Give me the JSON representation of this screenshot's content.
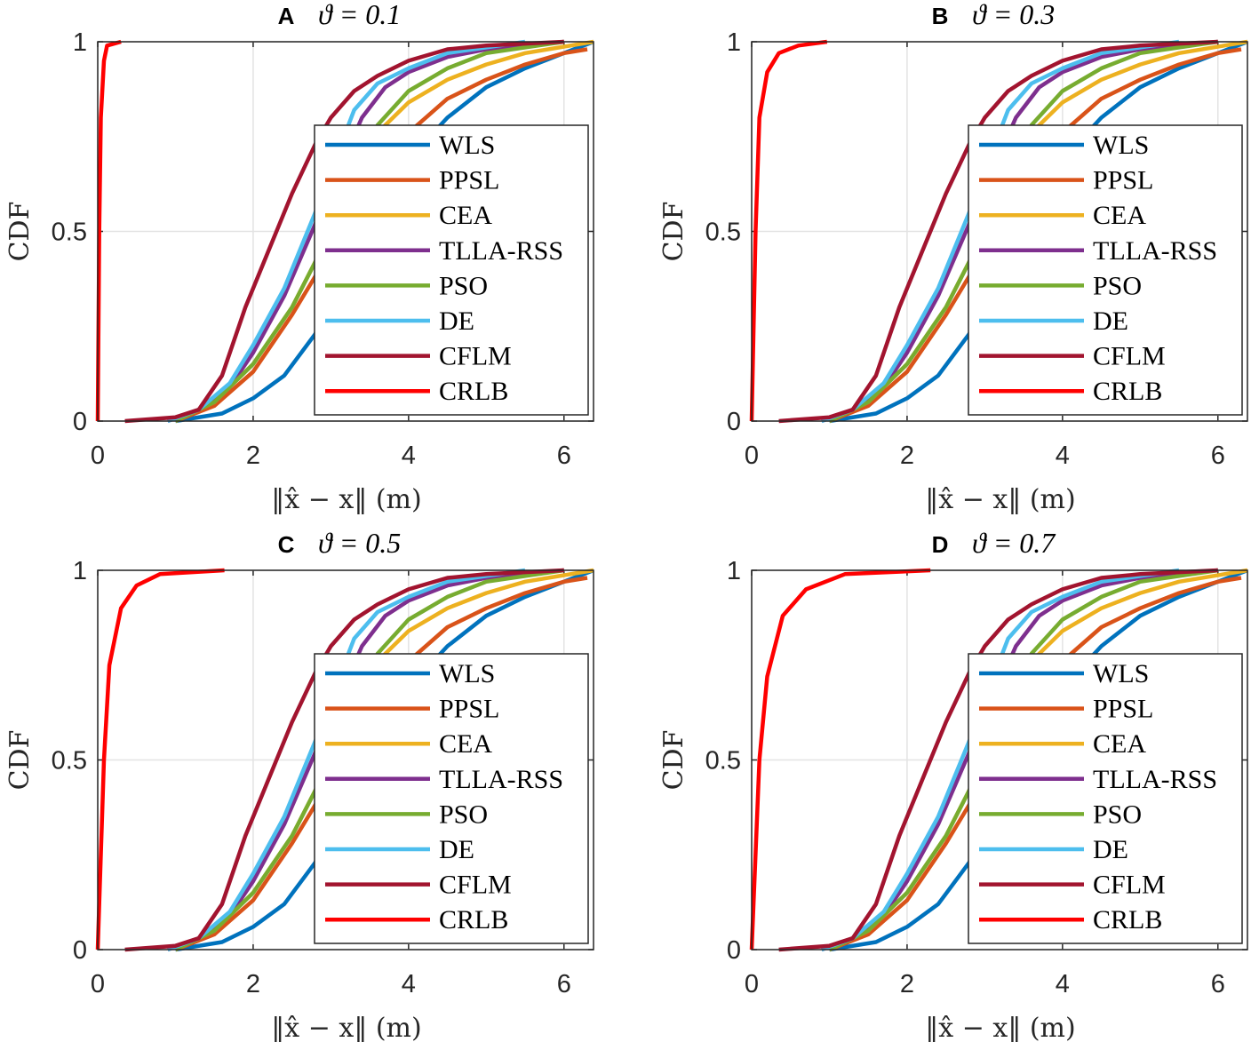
{
  "chart_data": {
    "type": "line",
    "xlabel": "‖x̂ − x‖ (m)",
    "ylabel": "CDF",
    "xlim": [
      0,
      6.38
    ],
    "ylim": [
      0,
      1
    ],
    "xticks": [
      "0",
      "2",
      "4",
      "6"
    ],
    "yticks": [
      "0",
      "0.5",
      "1"
    ],
    "grid": true,
    "legend_position": "lower-right",
    "common_series": [
      {
        "name": "WLS",
        "color": "#0072BD",
        "points": [
          [
            1.0,
            0
          ],
          [
            1.6,
            0.02
          ],
          [
            2.0,
            0.06
          ],
          [
            2.4,
            0.12
          ],
          [
            2.8,
            0.23
          ],
          [
            3.2,
            0.42
          ],
          [
            3.6,
            0.6
          ],
          [
            4.0,
            0.69
          ],
          [
            4.5,
            0.8
          ],
          [
            5.0,
            0.88
          ],
          [
            5.5,
            0.93
          ],
          [
            6.0,
            0.97
          ],
          [
            6.38,
            1.0
          ]
        ]
      },
      {
        "name": "PPSL",
        "color": "#D95319",
        "points": [
          [
            1.0,
            0
          ],
          [
            1.5,
            0.04
          ],
          [
            2.0,
            0.13
          ],
          [
            2.5,
            0.28
          ],
          [
            3.0,
            0.45
          ],
          [
            3.5,
            0.63
          ],
          [
            4.0,
            0.76
          ],
          [
            4.5,
            0.85
          ],
          [
            5.0,
            0.9
          ],
          [
            5.5,
            0.94
          ],
          [
            6.0,
            0.97
          ],
          [
            6.3,
            0.98
          ]
        ]
      },
      {
        "name": "CEA",
        "color": "#EDB120",
        "points": [
          [
            1.0,
            0
          ],
          [
            1.5,
            0.05
          ],
          [
            2.0,
            0.15
          ],
          [
            2.5,
            0.3
          ],
          [
            2.8,
            0.42
          ],
          [
            3.2,
            0.6
          ],
          [
            3.6,
            0.76
          ],
          [
            4.0,
            0.84
          ],
          [
            4.5,
            0.9
          ],
          [
            5.0,
            0.94
          ],
          [
            5.5,
            0.97
          ],
          [
            6.38,
            1.0
          ]
        ]
      },
      {
        "name": "TLLA-RSS",
        "color": "#7E2F8E",
        "points": [
          [
            0.9,
            0
          ],
          [
            1.3,
            0.03
          ],
          [
            1.7,
            0.09
          ],
          [
            2.0,
            0.18
          ],
          [
            2.4,
            0.33
          ],
          [
            2.8,
            0.52
          ],
          [
            3.1,
            0.66
          ],
          [
            3.4,
            0.8
          ],
          [
            3.7,
            0.88
          ],
          [
            4.0,
            0.92
          ],
          [
            4.5,
            0.96
          ],
          [
            5.0,
            0.98
          ],
          [
            6.0,
            1.0
          ]
        ]
      },
      {
        "name": "PSO",
        "color": "#77AC30",
        "points": [
          [
            1.0,
            0
          ],
          [
            1.5,
            0.05
          ],
          [
            2.0,
            0.15
          ],
          [
            2.5,
            0.3
          ],
          [
            2.8,
            0.42
          ],
          [
            3.2,
            0.6
          ],
          [
            3.6,
            0.78
          ],
          [
            4.0,
            0.87
          ],
          [
            4.5,
            0.93
          ],
          [
            5.0,
            0.97
          ],
          [
            6.0,
            1.0
          ]
        ]
      },
      {
        "name": "DE",
        "color": "#4DBEEE",
        "points": [
          [
            0.9,
            0
          ],
          [
            1.3,
            0.03
          ],
          [
            1.7,
            0.1
          ],
          [
            2.0,
            0.2
          ],
          [
            2.4,
            0.35
          ],
          [
            2.8,
            0.55
          ],
          [
            3.0,
            0.66
          ],
          [
            3.3,
            0.82
          ],
          [
            3.6,
            0.89
          ],
          [
            4.0,
            0.93
          ],
          [
            4.5,
            0.97
          ],
          [
            5.5,
            1.0
          ]
        ]
      },
      {
        "name": "CFLM",
        "color": "#A2142F",
        "points": [
          [
            0.35,
            0
          ],
          [
            1.0,
            0.01
          ],
          [
            1.3,
            0.03
          ],
          [
            1.6,
            0.12
          ],
          [
            1.9,
            0.3
          ],
          [
            2.2,
            0.45
          ],
          [
            2.5,
            0.6
          ],
          [
            2.8,
            0.73
          ],
          [
            3.0,
            0.8
          ],
          [
            3.3,
            0.87
          ],
          [
            3.6,
            0.91
          ],
          [
            4.0,
            0.95
          ],
          [
            4.5,
            0.98
          ],
          [
            5.0,
            0.99
          ],
          [
            6.0,
            1.0
          ]
        ]
      }
    ],
    "crlb_color": "#FF0000",
    "panels": [
      {
        "letter": "A",
        "title": "ϑ = 0.1",
        "crlb": [
          [
            0,
            0
          ],
          [
            0.02,
            0.5
          ],
          [
            0.04,
            0.8
          ],
          [
            0.08,
            0.95
          ],
          [
            0.12,
            0.99
          ],
          [
            0.3,
            1.0
          ]
        ]
      },
      {
        "letter": "B",
        "title": "ϑ = 0.3",
        "crlb": [
          [
            0,
            0
          ],
          [
            0.05,
            0.5
          ],
          [
            0.1,
            0.8
          ],
          [
            0.2,
            0.92
          ],
          [
            0.35,
            0.97
          ],
          [
            0.6,
            0.99
          ],
          [
            0.97,
            1.0
          ]
        ]
      },
      {
        "letter": "C",
        "title": "ϑ = 0.5",
        "crlb": [
          [
            0,
            0
          ],
          [
            0.08,
            0.5
          ],
          [
            0.15,
            0.75
          ],
          [
            0.3,
            0.9
          ],
          [
            0.5,
            0.96
          ],
          [
            0.8,
            0.99
          ],
          [
            1.63,
            1.0
          ]
        ]
      },
      {
        "letter": "D",
        "title": "ϑ = 0.7",
        "crlb": [
          [
            0,
            0
          ],
          [
            0.1,
            0.5
          ],
          [
            0.2,
            0.72
          ],
          [
            0.4,
            0.88
          ],
          [
            0.7,
            0.95
          ],
          [
            1.2,
            0.99
          ],
          [
            2.3,
            1.0
          ]
        ]
      }
    ],
    "legend": [
      "WLS",
      "PPSL",
      "CEA",
      "TLLA-RSS",
      "PSO",
      "DE",
      "CFLM",
      "CRLB"
    ]
  }
}
